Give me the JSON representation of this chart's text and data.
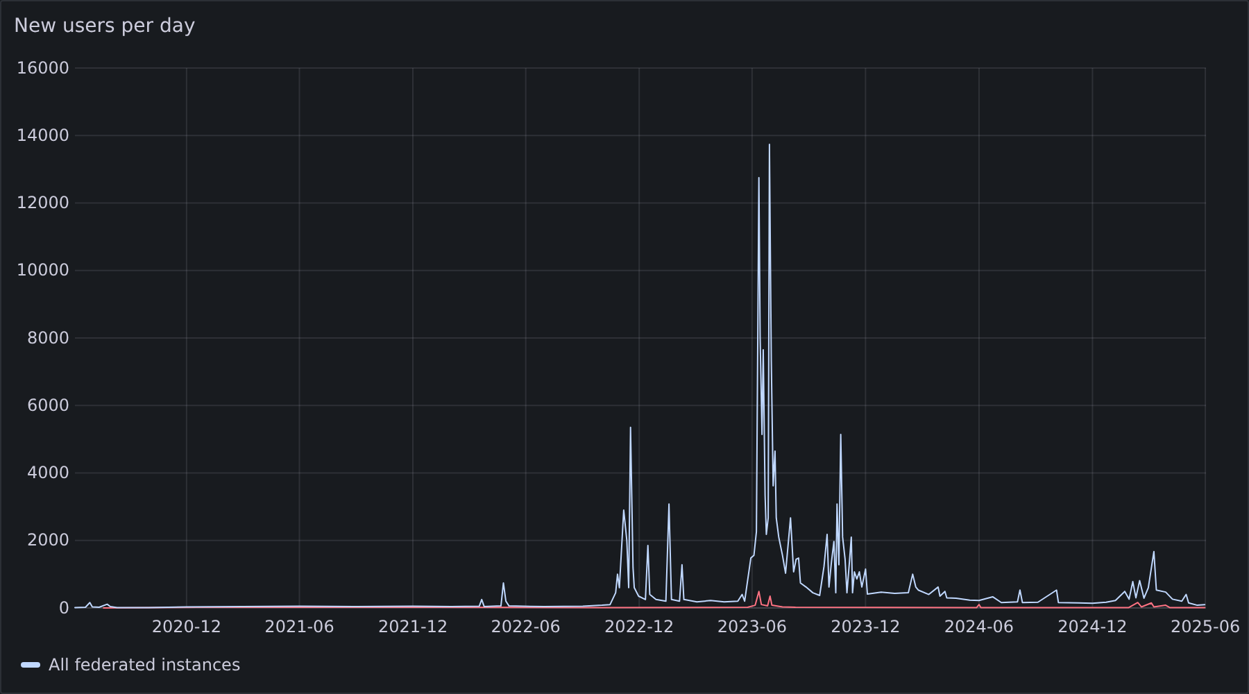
{
  "chart_data": {
    "type": "line",
    "title": "New users per day",
    "series": [
      {
        "color": "#ff7383",
        "x": [
          "2020-07-20",
          "2020-12-20",
          "2021-06-01",
          "2022-01-01",
          "2022-10-01",
          "2023-05-25",
          "2023-06-06",
          "2023-06-12",
          "2023-06-16",
          "2023-06-26",
          "2023-06-30",
          "2023-07-03",
          "2023-07-20",
          "2023-08-10",
          "2024-05-28",
          "2024-06-01",
          "2024-06-04",
          "2025-01-28",
          "2025-02-12",
          "2025-02-18",
          "2025-03-06",
          "2025-03-10",
          "2025-03-29",
          "2025-04-05",
          "2025-05-31"
        ],
        "values": [
          0,
          20,
          20,
          20,
          10,
          20,
          80,
          490,
          100,
          60,
          350,
          80,
          30,
          20,
          10,
          100,
          10,
          10,
          160,
          30,
          150,
          30,
          80,
          10,
          10
        ]
      },
      {
        "name": "All federated instances",
        "color": "#c0d8ff",
        "x": [
          "2020-06-04",
          "2020-06-21",
          "2020-06-28",
          "2020-07-02",
          "2020-07-13",
          "2020-07-26",
          "2020-07-31",
          "2020-08-11",
          "2020-10-01",
          "2020-12-01",
          "2021-03-01",
          "2021-06-01",
          "2021-09-01",
          "2021-12-01",
          "2022-02-01",
          "2022-03-18",
          "2022-03-22",
          "2022-03-26",
          "2022-04-22",
          "2022-04-26",
          "2022-04-30",
          "2022-05-05",
          "2022-07-01",
          "2022-09-01",
          "2022-10-02",
          "2022-10-15",
          "2022-10-24",
          "2022-10-27",
          "2022-10-30",
          "2022-11-06",
          "2022-11-11",
          "2022-11-14",
          "2022-11-17",
          "2022-11-21",
          "2022-11-23",
          "2022-11-30",
          "2022-12-11",
          "2022-12-15",
          "2022-12-18",
          "2022-12-28",
          "2023-01-13",
          "2023-01-18",
          "2023-01-22",
          "2023-02-04",
          "2023-02-08",
          "2023-02-11",
          "2023-03-04",
          "2023-03-26",
          "2023-04-17",
          "2023-05-09",
          "2023-05-16",
          "2023-05-20",
          "2023-05-30",
          "2023-06-04",
          "2023-06-08",
          "2023-06-12",
          "2023-06-14",
          "2023-06-17",
          "2023-06-19",
          "2023-06-22",
          "2023-06-24",
          "2023-06-27",
          "2023-06-29",
          "2023-07-02",
          "2023-07-05",
          "2023-07-08",
          "2023-07-10",
          "2023-07-14",
          "2023-07-20",
          "2023-07-25",
          "2023-07-29",
          "2023-08-02",
          "2023-08-07",
          "2023-08-11",
          "2023-08-15",
          "2023-08-18",
          "2023-08-27",
          "2023-09-07",
          "2023-09-18",
          "2023-09-25",
          "2023-09-30",
          "2023-10-03",
          "2023-10-07",
          "2023-10-11",
          "2023-10-14",
          "2023-10-16",
          "2023-10-19",
          "2023-10-22",
          "2023-10-25",
          "2023-10-29",
          "2023-11-01",
          "2023-11-05",
          "2023-11-08",
          "2023-11-10",
          "2023-11-13",
          "2023-11-17",
          "2023-11-21",
          "2023-11-25",
          "2023-12-01",
          "2023-12-04",
          "2023-12-26",
          "2024-01-17",
          "2024-02-08",
          "2024-02-15",
          "2024-02-20",
          "2024-02-24",
          "2024-03-12",
          "2024-03-27",
          "2024-03-30",
          "2024-04-07",
          "2024-04-10",
          "2024-04-25",
          "2024-05-17",
          "2024-06-01",
          "2024-06-23",
          "2024-07-07",
          "2024-08-02",
          "2024-08-06",
          "2024-08-10",
          "2024-09-04",
          "2024-10-04",
          "2024-10-07",
          "2024-11-09",
          "2024-12-01",
          "2024-12-23",
          "2025-01-07",
          "2025-01-22",
          "2025-01-29",
          "2025-02-04",
          "2025-02-09",
          "2025-02-15",
          "2025-02-22",
          "2025-03-01",
          "2025-03-10",
          "2025-03-14",
          "2025-03-29",
          "2025-04-09",
          "2025-04-24",
          "2025-05-01",
          "2025-05-05",
          "2025-05-19",
          "2025-05-31"
        ],
        "values": [
          10,
          20,
          160,
          30,
          20,
          110,
          40,
          10,
          10,
          30,
          40,
          50,
          40,
          50,
          40,
          50,
          250,
          40,
          60,
          740,
          200,
          60,
          40,
          50,
          80,
          100,
          450,
          1000,
          600,
          2900,
          2000,
          600,
          5350,
          1200,
          600,
          350,
          250,
          1850,
          400,
          250,
          200,
          3080,
          250,
          200,
          1280,
          250,
          180,
          220,
          180,
          200,
          400,
          200,
          1480,
          1560,
          2260,
          12750,
          8000,
          5140,
          7650,
          3330,
          2180,
          2670,
          13740,
          7320,
          3620,
          4650,
          2670,
          2100,
          1560,
          1030,
          1850,
          2670,
          1070,
          1440,
          1480,
          740,
          620,
          450,
          370,
          1230,
          2180,
          620,
          1360,
          1970,
          450,
          3080,
          1280,
          5140,
          2100,
          1440,
          450,
          1360,
          2100,
          450,
          1070,
          860,
          1070,
          620,
          1150,
          410,
          470,
          430,
          450,
          1000,
          620,
          530,
          400,
          620,
          350,
          490,
          300,
          290,
          230,
          220,
          330,
          160,
          180,
          530,
          160,
          170,
          530,
          160,
          150,
          140,
          170,
          220,
          490,
          260,
          780,
          300,
          810,
          290,
          600,
          1670,
          530,
          470,
          260,
          200,
          400,
          150,
          80,
          100
        ]
      }
    ],
    "xlim": [
      "2020-06-04",
      "2025-06-02"
    ],
    "xticks": [
      "2020-12",
      "2021-06",
      "2021-12",
      "2022-06",
      "2022-12",
      "2023-06",
      "2023-12",
      "2024-06",
      "2024-12",
      "2025-06"
    ],
    "ylim": [
      0,
      16000
    ],
    "yticks": [
      0,
      2000,
      4000,
      6000,
      8000,
      10000,
      12000,
      14000,
      16000
    ],
    "grid": true,
    "legend": "bottom"
  }
}
